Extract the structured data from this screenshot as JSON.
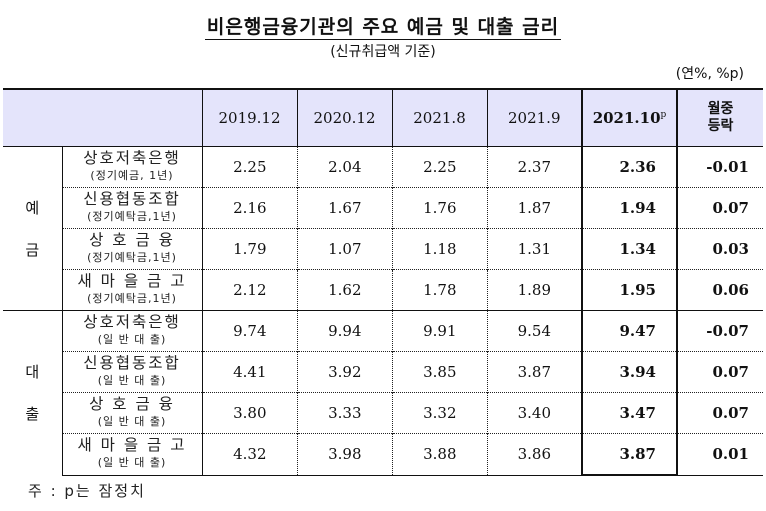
{
  "title": "비은행금융기관의 주요 예금 및 대출 금리",
  "subtitle": "(신규취급액 기준)",
  "unit": "(연%, %p)",
  "table": {
    "columns": [
      "2019.12",
      "2020.12",
      "2021.8",
      "2021.9",
      "2021.10",
      "월중 등락"
    ],
    "current_col_label": "2021.10",
    "current_col_sup": "p",
    "change_col_line1": "월중",
    "change_col_line2": "등락",
    "groups": [
      {
        "label_chars": [
          "예",
          "금"
        ],
        "rows": [
          {
            "name": "상호저축은행",
            "sub": "(정기예금, 1년)",
            "values": [
              "2.25",
              "2.04",
              "2.25",
              "2.37"
            ],
            "current": "2.36",
            "change": "-0.01"
          },
          {
            "name": "신용협동조합",
            "sub": "(정기예탁금,1년)",
            "values": [
              "2.16",
              "1.67",
              "1.76",
              "1.87"
            ],
            "current": "1.94",
            "change": "0.07"
          },
          {
            "name": "상 호  금 융",
            "sub": "(정기예탁금,1년)",
            "values": [
              "1.79",
              "1.07",
              "1.18",
              "1.31"
            ],
            "current": "1.34",
            "change": "0.03"
          },
          {
            "name": "새 마 을 금 고",
            "sub": "(정기예탁금,1년)",
            "values": [
              "2.12",
              "1.62",
              "1.78",
              "1.89"
            ],
            "current": "1.95",
            "change": "0.06"
          }
        ]
      },
      {
        "label_chars": [
          "대",
          "출"
        ],
        "rows": [
          {
            "name": "상호저축은행",
            "sub": "(일 반 대 출)",
            "values": [
              "9.74",
              "9.94",
              "9.91",
              "9.54"
            ],
            "current": "9.47",
            "change": "-0.07"
          },
          {
            "name": "신용협동조합",
            "sub": "(일 반 대 출)",
            "values": [
              "4.41",
              "3.92",
              "3.85",
              "3.87"
            ],
            "current": "3.94",
            "change": "0.07"
          },
          {
            "name": "상 호  금 융",
            "sub": "(일 반 대 출)",
            "values": [
              "3.80",
              "3.33",
              "3.32",
              "3.40"
            ],
            "current": "3.47",
            "change": "0.07"
          },
          {
            "name": "새 마 을 금 고",
            "sub": "(일 반 대 출)",
            "values": [
              "4.32",
              "3.98",
              "3.88",
              "3.86"
            ],
            "current": "3.87",
            "change": "0.01"
          }
        ]
      }
    ]
  },
  "note": "주 : p는 잠정치",
  "colors": {
    "header_bg": "#e4e4fb",
    "border": "#111111"
  }
}
